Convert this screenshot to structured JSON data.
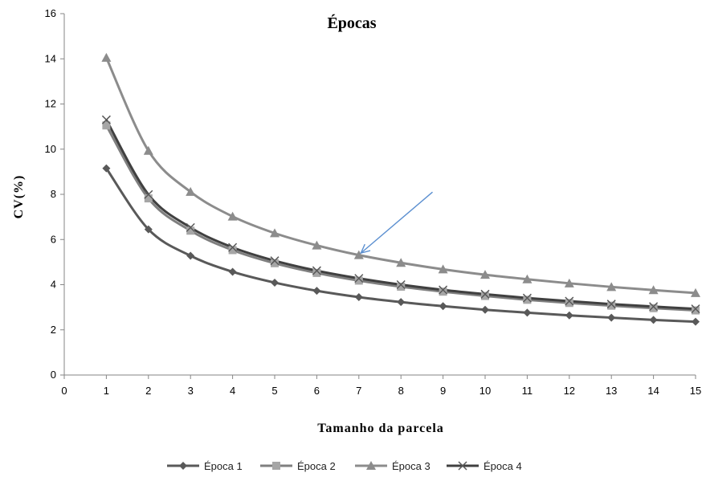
{
  "chart_data": {
    "type": "line",
    "title": "Épocas",
    "xlabel": "Tamanho da parcela",
    "ylabel": "CV(%)",
    "xlim": [
      0,
      15
    ],
    "ylim": [
      0,
      16
    ],
    "xticks": [
      "0",
      "1",
      "2",
      "3",
      "4",
      "5",
      "6",
      "7",
      "8",
      "9",
      "10",
      "11",
      "12",
      "13",
      "14",
      "15"
    ],
    "yticks": [
      "0",
      "2",
      "4",
      "6",
      "8",
      "10",
      "12",
      "14",
      "16"
    ],
    "grid": false,
    "legend_position": "bottom",
    "x": [
      1,
      2,
      3,
      4,
      5,
      6,
      7,
      8,
      9,
      10,
      11,
      12,
      13,
      14,
      15
    ],
    "series": [
      {
        "name": "Época 1",
        "marker": "diamond",
        "color": "#595959",
        "markerColor": "#595959",
        "values": [
          9.15,
          6.45,
          5.28,
          4.57,
          4.09,
          3.73,
          3.45,
          3.23,
          3.05,
          2.89,
          2.76,
          2.64,
          2.54,
          2.44,
          2.36
        ]
      },
      {
        "name": "Época 2",
        "marker": "square",
        "color": "#7f7f7f",
        "markerColor": "#a6a6a6",
        "values": [
          11.05,
          7.82,
          6.39,
          5.53,
          4.95,
          4.52,
          4.18,
          3.91,
          3.69,
          3.5,
          3.33,
          3.19,
          3.07,
          2.96,
          2.86
        ]
      },
      {
        "name": "Época 3",
        "marker": "triangle",
        "color": "#8c8c8c",
        "markerColor": "#8c8c8c",
        "values": [
          14.05,
          9.93,
          8.11,
          7.02,
          6.28,
          5.74,
          5.31,
          4.97,
          4.68,
          4.44,
          4.24,
          4.06,
          3.9,
          3.76,
          3.63
        ]
      },
      {
        "name": "Época 4",
        "marker": "x",
        "color": "#404040",
        "markerColor": "#595959",
        "values": [
          11.3,
          7.99,
          6.53,
          5.65,
          5.06,
          4.62,
          4.28,
          4.0,
          3.77,
          3.58,
          3.41,
          3.27,
          3.14,
          3.03,
          2.93
        ]
      }
    ],
    "annotations": [
      {
        "type": "arrow",
        "color": "#5b8fd0",
        "from": [
          8.75,
          8.1
        ],
        "to": [
          7.05,
          5.4
        ]
      }
    ]
  }
}
